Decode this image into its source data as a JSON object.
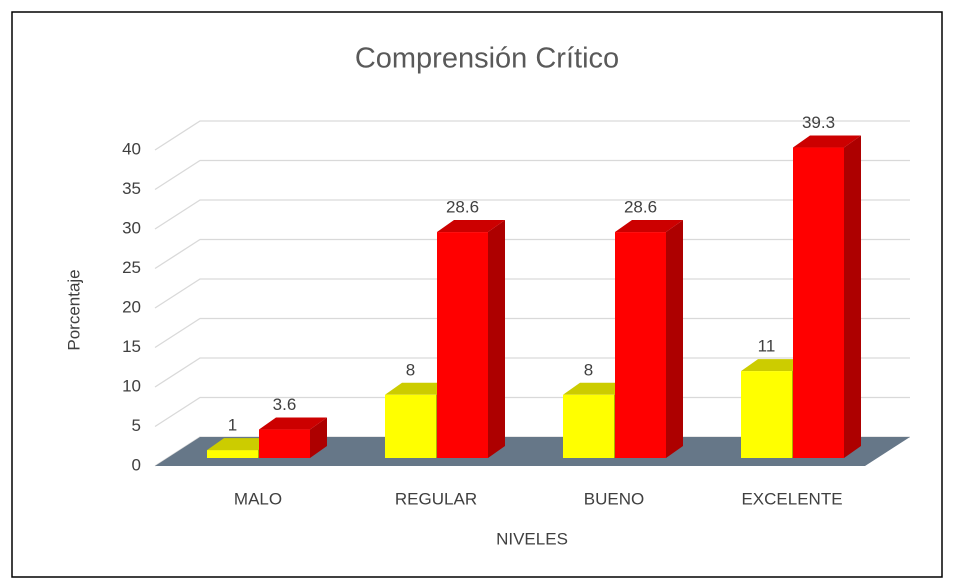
{
  "chart_data": {
    "type": "bar3d",
    "title": "Comprensión Crítico",
    "x_label": "NIVELES",
    "y_label": "Porcentaje",
    "categories": [
      "MALO",
      "REGULAR",
      "BUENO",
      "EXCELENTE"
    ],
    "series": [
      {
        "color": "#ffff00",
        "values": [
          1,
          8,
          8,
          11
        ]
      },
      {
        "color": "#ff0000",
        "values": [
          3.6,
          28.6,
          28.6,
          39.3
        ]
      }
    ],
    "ylim": [
      0,
      40
    ],
    "yticks": [
      0,
      5,
      10,
      15,
      20,
      25,
      30,
      35,
      40
    ],
    "grid": true
  }
}
